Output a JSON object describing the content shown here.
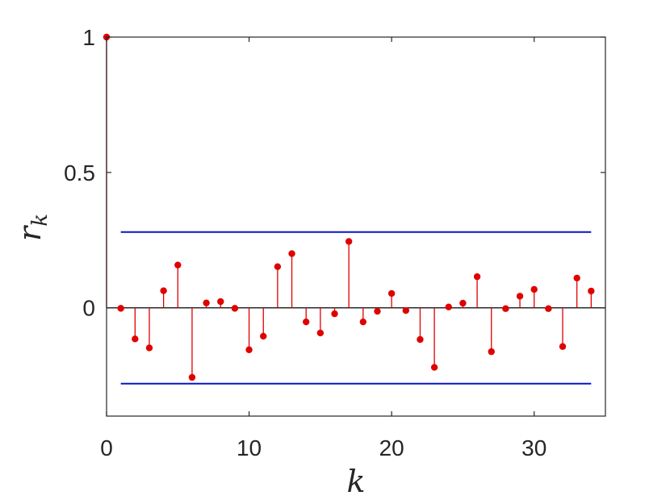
{
  "chart_data": {
    "type": "stem",
    "xlabel": "k",
    "ylabel": "r",
    "ylabel_subscript": "k",
    "xlim": [
      0,
      35
    ],
    "ylim": [
      -0.4,
      1.0
    ],
    "x_ticks": [
      0,
      10,
      20,
      30
    ],
    "y_ticks": [
      0,
      0.5,
      1
    ],
    "x_tick_labels": [
      "0",
      "10",
      "20",
      "30"
    ],
    "y_tick_labels": [
      "0",
      "0.5",
      "1"
    ],
    "grid": false,
    "series": [
      {
        "color": "#e00000",
        "x": [
          0,
          1,
          2,
          3,
          4,
          5,
          6,
          7,
          8,
          9,
          10,
          11,
          12,
          13,
          14,
          15,
          16,
          17,
          18,
          19,
          20,
          21,
          22,
          23,
          24,
          25,
          26,
          27,
          28,
          29,
          30,
          31,
          32,
          33,
          34
        ],
        "y": [
          1.0,
          -0.002,
          -0.115,
          -0.148,
          0.063,
          0.158,
          -0.257,
          0.018,
          0.023,
          -0.002,
          -0.155,
          -0.105,
          0.152,
          0.2,
          -0.052,
          -0.093,
          -0.022,
          0.245,
          -0.052,
          -0.013,
          0.053,
          -0.01,
          -0.117,
          -0.22,
          0.003,
          0.017,
          0.115,
          -0.162,
          -0.003,
          0.043,
          0.068,
          -0.003,
          -0.143,
          0.11,
          0.062
        ]
      }
    ],
    "bounds": {
      "color": "#0a14c8",
      "x_range": [
        1,
        34
      ],
      "upper": 0.28,
      "lower": -0.28
    },
    "zero_line_color": "#000000"
  }
}
